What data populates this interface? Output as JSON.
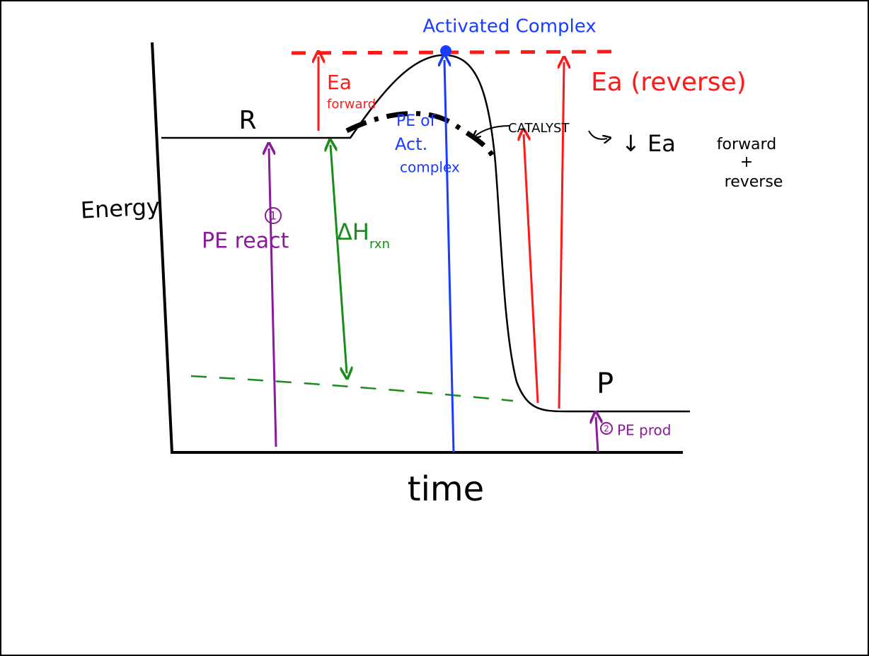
{
  "title": "Activated Complex",
  "axes": {
    "y_label": "Energy",
    "x_label": "time"
  },
  "nodes": {
    "reactant": "R",
    "product": "P"
  },
  "annotations": {
    "ea_forward": [
      "Ea",
      "forward"
    ],
    "ea_reverse": "Ea (reverse)",
    "pe_activated": [
      "PE of",
      "Act.",
      "complex"
    ],
    "catalyst": "CATALYST",
    "catalyst_effect": "↓ Ea",
    "catalyst_scope": [
      "forward",
      "+",
      "reverse"
    ],
    "pe_react_num": "1",
    "pe_react": "PE react",
    "delta_h": "ΔH",
    "delta_h_sub": "rxn",
    "pe_prod_num": "2",
    "pe_prod": "PE prod"
  }
}
